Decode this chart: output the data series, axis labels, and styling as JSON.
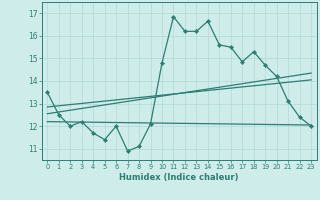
{
  "xlabel": "Humidex (Indice chaleur)",
  "bg_color": "#ceecea",
  "grid_color": "#b0d8d5",
  "line_color": "#2e7d72",
  "xlim": [
    -0.5,
    23.5
  ],
  "ylim": [
    10.5,
    17.5
  ],
  "yticks": [
    11,
    12,
    13,
    14,
    15,
    16,
    17
  ],
  "xticks": [
    0,
    1,
    2,
    3,
    4,
    5,
    6,
    7,
    8,
    9,
    10,
    11,
    12,
    13,
    14,
    15,
    16,
    17,
    18,
    19,
    20,
    21,
    22,
    23
  ],
  "main_x": [
    0,
    1,
    2,
    3,
    4,
    5,
    6,
    7,
    8,
    9,
    10,
    11,
    12,
    13,
    14,
    15,
    16,
    17,
    18,
    19,
    20,
    21,
    22,
    23
  ],
  "main_y": [
    13.5,
    12.5,
    12.0,
    12.2,
    11.7,
    11.4,
    12.0,
    10.9,
    11.1,
    12.1,
    14.8,
    16.85,
    16.2,
    16.2,
    16.65,
    15.6,
    15.5,
    14.85,
    15.3,
    14.7,
    14.2,
    13.1,
    12.4,
    12.0
  ],
  "trend1_x": [
    0,
    23
  ],
  "trend1_y": [
    12.85,
    14.05
  ],
  "trend2_x": [
    0,
    23
  ],
  "trend2_y": [
    12.55,
    14.35
  ],
  "trend3_x": [
    0,
    23
  ],
  "trend3_y": [
    12.2,
    12.05
  ]
}
